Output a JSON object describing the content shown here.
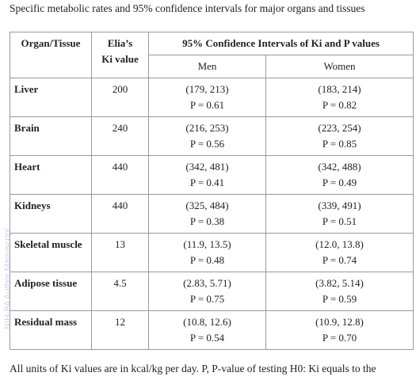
{
  "title": "Specific metabolic rates and 95% confidence intervals for major organs and tissues",
  "watermark": "NIH-PA Author Manuscript",
  "table": {
    "header": {
      "organ": "Organ/Tissue",
      "ki_line1": "Elia’s",
      "ki_line2": "Ki value",
      "ci": "95% Confidence Intervals of Ki and P values",
      "men": "Men",
      "women": "Women"
    },
    "rows": [
      [
        "Liver",
        "200",
        "(179, 213)",
        "P = 0.61",
        "(183, 214)",
        "P = 0.82"
      ],
      [
        "Brain",
        "240",
        "(216, 253)",
        "P = 0.56",
        "(223, 254)",
        "P = 0.85"
      ],
      [
        "Heart",
        "440",
        "(342, 481)",
        "P = 0.41",
        "(342, 488)",
        "P = 0.49"
      ],
      [
        "Kidneys",
        "440",
        "(325, 484)",
        "P = 0.38",
        "(339, 491)",
        "P = 0.51"
      ],
      [
        "Skeletal muscle",
        "13",
        "(11.9, 13.5)",
        "P = 0.48",
        "(12.0, 13.8)",
        "P = 0.74"
      ],
      [
        "Adipose tissue",
        "4.5",
        "(2.83, 5.71)",
        "P = 0.75",
        "(3.82, 5.14)",
        "P = 0.59"
      ],
      [
        "Residual mass",
        "12",
        "(10.8, 12.6)",
        "P = 0.54",
        "(10.9, 12.8)",
        "P = 0.70"
      ]
    ]
  },
  "footer": "All units of Ki values are in kcal/kg per day. P, P-value of testing H0: Ki equals to the"
}
